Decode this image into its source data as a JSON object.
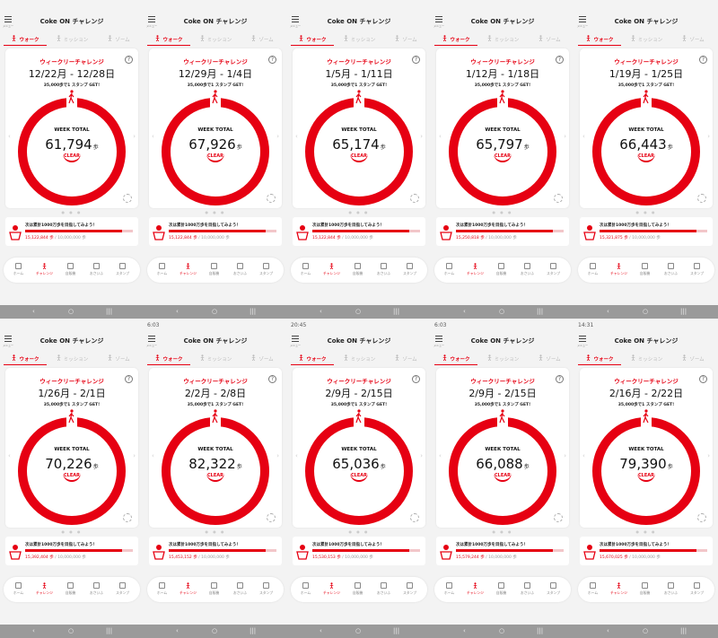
{
  "app_title": "Coke ON チャレンジ",
  "menu_label": "メニュー",
  "tabs": [
    "ウォーク",
    "ミッション",
    "ゾーム"
  ],
  "challenge_title": "ウィークリーチャレンジ",
  "stamp_text": "35,000歩で1 スタンプ GET!",
  "week_total_label": "WEEK TOTAL",
  "steps_unit": "歩",
  "clear_label": "CLEAR",
  "goal_text": "次は累計1000万歩を目指してみよう！",
  "goal_total": " / 10,000,000 歩",
  "nav_items": [
    "ホーム",
    "チャレンジ",
    "自販機",
    "おさいふ",
    "スタンプ"
  ],
  "accent_color": "#e60012",
  "screens": [
    {
      "time": "",
      "dates": "12/22月 - 12/28日",
      "steps": "61,794",
      "goal_current": "15,122,844 歩",
      "goal_progress": 0.9
    },
    {
      "time": "",
      "dates": "12/29月 - 1/4日",
      "steps": "67,926",
      "goal_current": "15,122,844 歩",
      "goal_progress": 0.9
    },
    {
      "time": "",
      "dates": "1/5月 - 1/11日",
      "steps": "65,174",
      "goal_current": "15,122,844 歩",
      "goal_progress": 0.9
    },
    {
      "time": "",
      "dates": "1/12月 - 1/18日",
      "steps": "65,797",
      "goal_current": "15,250,818 歩",
      "goal_progress": 0.9
    },
    {
      "time": "",
      "dates": "1/19月 - 1/25日",
      "steps": "66,443",
      "goal_current": "15,321,875 歩",
      "goal_progress": 0.9
    },
    {
      "time": "",
      "dates": "1/26月 - 2/1日",
      "steps": "70,226",
      "goal_current": "15,392,404 歩",
      "goal_progress": 0.9
    },
    {
      "time": "6:03",
      "dates": "2/2月 - 2/8日",
      "steps": "82,322",
      "goal_current": "15,453,152 歩",
      "goal_progress": 0.9
    },
    {
      "time": "20:45",
      "dates": "2/9月 - 2/15日",
      "steps": "65,036",
      "goal_current": "15,530,153 歩",
      "goal_progress": 0.9
    },
    {
      "time": "6:03",
      "dates": "2/9月 - 2/15日",
      "steps": "66,088",
      "goal_current": "15,579,244 歩",
      "goal_progress": 0.9
    },
    {
      "time": "14:31",
      "dates": "2/16月 - 2/22日",
      "steps": "79,390",
      "goal_current": "15,670,025 歩",
      "goal_progress": 0.9
    }
  ]
}
